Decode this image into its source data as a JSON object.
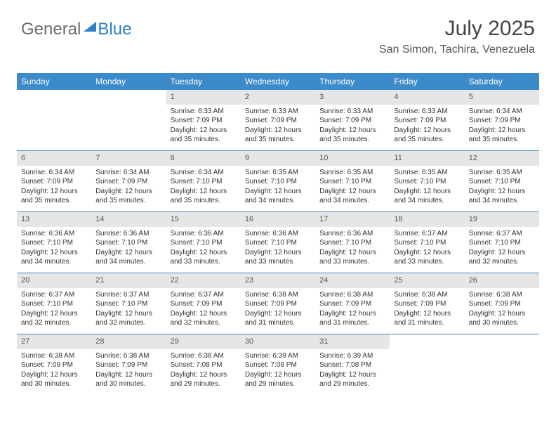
{
  "logo": {
    "general": "General",
    "blue": "Blue"
  },
  "header": {
    "title": "July 2025",
    "location": "San Simon, Tachira, Venezuela"
  },
  "colors": {
    "header_bg": "#3b8ac9",
    "header_text": "#ffffff",
    "daynum_bg": "#e6e6e6",
    "text": "#333333"
  },
  "days_of_week": [
    "Sunday",
    "Monday",
    "Tuesday",
    "Wednesday",
    "Thursday",
    "Friday",
    "Saturday"
  ],
  "weeks": [
    [
      {
        "n": "",
        "sr": "",
        "ss": "",
        "dl": ""
      },
      {
        "n": "",
        "sr": "",
        "ss": "",
        "dl": ""
      },
      {
        "n": "1",
        "sr": "Sunrise: 6:33 AM",
        "ss": "Sunset: 7:09 PM",
        "dl": "Daylight: 12 hours and 35 minutes."
      },
      {
        "n": "2",
        "sr": "Sunrise: 6:33 AM",
        "ss": "Sunset: 7:09 PM",
        "dl": "Daylight: 12 hours and 35 minutes."
      },
      {
        "n": "3",
        "sr": "Sunrise: 6:33 AM",
        "ss": "Sunset: 7:09 PM",
        "dl": "Daylight: 12 hours and 35 minutes."
      },
      {
        "n": "4",
        "sr": "Sunrise: 6:33 AM",
        "ss": "Sunset: 7:09 PM",
        "dl": "Daylight: 12 hours and 35 minutes."
      },
      {
        "n": "5",
        "sr": "Sunrise: 6:34 AM",
        "ss": "Sunset: 7:09 PM",
        "dl": "Daylight: 12 hours and 35 minutes."
      }
    ],
    [
      {
        "n": "6",
        "sr": "Sunrise: 6:34 AM",
        "ss": "Sunset: 7:09 PM",
        "dl": "Daylight: 12 hours and 35 minutes."
      },
      {
        "n": "7",
        "sr": "Sunrise: 6:34 AM",
        "ss": "Sunset: 7:09 PM",
        "dl": "Daylight: 12 hours and 35 minutes."
      },
      {
        "n": "8",
        "sr": "Sunrise: 6:34 AM",
        "ss": "Sunset: 7:10 PM",
        "dl": "Daylight: 12 hours and 35 minutes."
      },
      {
        "n": "9",
        "sr": "Sunrise: 6:35 AM",
        "ss": "Sunset: 7:10 PM",
        "dl": "Daylight: 12 hours and 34 minutes."
      },
      {
        "n": "10",
        "sr": "Sunrise: 6:35 AM",
        "ss": "Sunset: 7:10 PM",
        "dl": "Daylight: 12 hours and 34 minutes."
      },
      {
        "n": "11",
        "sr": "Sunrise: 6:35 AM",
        "ss": "Sunset: 7:10 PM",
        "dl": "Daylight: 12 hours and 34 minutes."
      },
      {
        "n": "12",
        "sr": "Sunrise: 6:35 AM",
        "ss": "Sunset: 7:10 PM",
        "dl": "Daylight: 12 hours and 34 minutes."
      }
    ],
    [
      {
        "n": "13",
        "sr": "Sunrise: 6:36 AM",
        "ss": "Sunset: 7:10 PM",
        "dl": "Daylight: 12 hours and 34 minutes."
      },
      {
        "n": "14",
        "sr": "Sunrise: 6:36 AM",
        "ss": "Sunset: 7:10 PM",
        "dl": "Daylight: 12 hours and 34 minutes."
      },
      {
        "n": "15",
        "sr": "Sunrise: 6:36 AM",
        "ss": "Sunset: 7:10 PM",
        "dl": "Daylight: 12 hours and 33 minutes."
      },
      {
        "n": "16",
        "sr": "Sunrise: 6:36 AM",
        "ss": "Sunset: 7:10 PM",
        "dl": "Daylight: 12 hours and 33 minutes."
      },
      {
        "n": "17",
        "sr": "Sunrise: 6:36 AM",
        "ss": "Sunset: 7:10 PM",
        "dl": "Daylight: 12 hours and 33 minutes."
      },
      {
        "n": "18",
        "sr": "Sunrise: 6:37 AM",
        "ss": "Sunset: 7:10 PM",
        "dl": "Daylight: 12 hours and 33 minutes."
      },
      {
        "n": "19",
        "sr": "Sunrise: 6:37 AM",
        "ss": "Sunset: 7:10 PM",
        "dl": "Daylight: 12 hours and 32 minutes."
      }
    ],
    [
      {
        "n": "20",
        "sr": "Sunrise: 6:37 AM",
        "ss": "Sunset: 7:10 PM",
        "dl": "Daylight: 12 hours and 32 minutes."
      },
      {
        "n": "21",
        "sr": "Sunrise: 6:37 AM",
        "ss": "Sunset: 7:10 PM",
        "dl": "Daylight: 12 hours and 32 minutes."
      },
      {
        "n": "22",
        "sr": "Sunrise: 6:37 AM",
        "ss": "Sunset: 7:09 PM",
        "dl": "Daylight: 12 hours and 32 minutes."
      },
      {
        "n": "23",
        "sr": "Sunrise: 6:38 AM",
        "ss": "Sunset: 7:09 PM",
        "dl": "Daylight: 12 hours and 31 minutes."
      },
      {
        "n": "24",
        "sr": "Sunrise: 6:38 AM",
        "ss": "Sunset: 7:09 PM",
        "dl": "Daylight: 12 hours and 31 minutes."
      },
      {
        "n": "25",
        "sr": "Sunrise: 6:38 AM",
        "ss": "Sunset: 7:09 PM",
        "dl": "Daylight: 12 hours and 31 minutes."
      },
      {
        "n": "26",
        "sr": "Sunrise: 6:38 AM",
        "ss": "Sunset: 7:09 PM",
        "dl": "Daylight: 12 hours and 30 minutes."
      }
    ],
    [
      {
        "n": "27",
        "sr": "Sunrise: 6:38 AM",
        "ss": "Sunset: 7:09 PM",
        "dl": "Daylight: 12 hours and 30 minutes."
      },
      {
        "n": "28",
        "sr": "Sunrise: 6:38 AM",
        "ss": "Sunset: 7:09 PM",
        "dl": "Daylight: 12 hours and 30 minutes."
      },
      {
        "n": "29",
        "sr": "Sunrise: 6:38 AM",
        "ss": "Sunset: 7:08 PM",
        "dl": "Daylight: 12 hours and 29 minutes."
      },
      {
        "n": "30",
        "sr": "Sunrise: 6:39 AM",
        "ss": "Sunset: 7:08 PM",
        "dl": "Daylight: 12 hours and 29 minutes."
      },
      {
        "n": "31",
        "sr": "Sunrise: 6:39 AM",
        "ss": "Sunset: 7:08 PM",
        "dl": "Daylight: 12 hours and 29 minutes."
      },
      {
        "n": "",
        "sr": "",
        "ss": "",
        "dl": ""
      },
      {
        "n": "",
        "sr": "",
        "ss": "",
        "dl": ""
      }
    ]
  ]
}
